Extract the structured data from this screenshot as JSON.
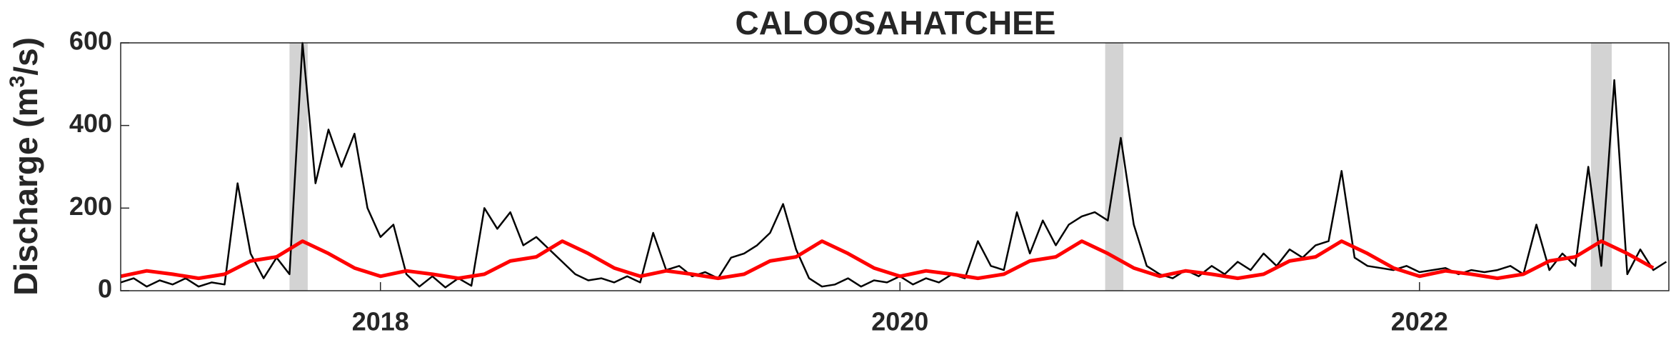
{
  "chart_data": {
    "type": "line",
    "title": "CALOOSAHATCHEE",
    "ylabel": [
      "Discharge (m",
      "3",
      "/s)"
    ],
    "xlim": [
      2017,
      2022.96
    ],
    "xticks": [
      2018,
      2020,
      2022
    ],
    "ylim": [
      0,
      600
    ],
    "yticks": [
      0,
      200,
      400,
      600
    ],
    "spans": [
      [
        2017.65,
        2017.72
      ],
      [
        2020.79,
        2020.86
      ],
      [
        2022.66,
        2022.74
      ]
    ],
    "span_color": "#d3d3d3",
    "series": [
      {
        "color": "#000000",
        "width": 2.5,
        "x": [
          2017.0,
          2017.05,
          2017.1,
          2017.15,
          2017.2,
          2017.25,
          2017.3,
          2017.35,
          2017.4,
          2017.45,
          2017.5,
          2017.55,
          2017.6,
          2017.65,
          2017.7,
          2017.75,
          2017.8,
          2017.85,
          2017.9,
          2017.95,
          2018.0,
          2018.05,
          2018.1,
          2018.15,
          2018.2,
          2018.25,
          2018.3,
          2018.35,
          2018.4,
          2018.45,
          2018.5,
          2018.55,
          2018.6,
          2018.65,
          2018.7,
          2018.75,
          2018.8,
          2018.85,
          2018.9,
          2018.95,
          2019.0,
          2019.05,
          2019.1,
          2019.15,
          2019.2,
          2019.25,
          2019.3,
          2019.35,
          2019.4,
          2019.45,
          2019.5,
          2019.55,
          2019.6,
          2019.65,
          2019.7,
          2019.75,
          2019.8,
          2019.85,
          2019.9,
          2019.95,
          2020.0,
          2020.05,
          2020.1,
          2020.15,
          2020.2,
          2020.25,
          2020.3,
          2020.35,
          2020.4,
          2020.45,
          2020.5,
          2020.55,
          2020.6,
          2020.65,
          2020.7,
          2020.75,
          2020.8,
          2020.85,
          2020.9,
          2020.95,
          2021.0,
          2021.05,
          2021.1,
          2021.15,
          2021.2,
          2021.25,
          2021.3,
          2021.35,
          2021.4,
          2021.45,
          2021.5,
          2021.55,
          2021.6,
          2021.65,
          2021.7,
          2021.75,
          2021.8,
          2021.85,
          2021.9,
          2021.95,
          2022.0,
          2022.05,
          2022.1,
          2022.15,
          2022.2,
          2022.25,
          2022.3,
          2022.35,
          2022.4,
          2022.45,
          2022.5,
          2022.55,
          2022.6,
          2022.65,
          2022.7,
          2022.75,
          2022.8,
          2022.85,
          2022.9,
          2022.95
        ],
        "values": [
          20,
          30,
          10,
          25,
          15,
          30,
          10,
          20,
          15,
          260,
          90,
          30,
          80,
          40,
          600,
          260,
          390,
          300,
          380,
          200,
          130,
          160,
          40,
          10,
          35,
          8,
          30,
          12,
          200,
          150,
          190,
          110,
          130,
          100,
          70,
          40,
          25,
          30,
          20,
          35,
          20,
          140,
          50,
          60,
          35,
          45,
          30,
          80,
          90,
          110,
          140,
          210,
          100,
          30,
          10,
          15,
          30,
          10,
          25,
          20,
          35,
          15,
          30,
          20,
          40,
          30,
          120,
          60,
          50,
          190,
          90,
          170,
          110,
          160,
          180,
          190,
          170,
          370,
          160,
          60,
          40,
          30,
          50,
          35,
          60,
          40,
          70,
          50,
          90,
          60,
          100,
          80,
          110,
          120,
          290,
          80,
          60,
          55,
          50,
          60,
          45,
          50,
          55,
          40,
          50,
          45,
          50,
          60,
          40,
          160,
          50,
          90,
          60,
          300,
          60,
          510,
          40,
          100,
          50,
          70
        ]
      },
      {
        "color": "#ff0000",
        "width": 5,
        "x": [
          2017.0,
          2017.1,
          2017.2,
          2017.3,
          2017.4,
          2017.5,
          2017.6,
          2017.7,
          2017.8,
          2017.9,
          2018.0,
          2018.1,
          2018.2,
          2018.3,
          2018.4,
          2018.5,
          2018.6,
          2018.7,
          2018.8,
          2018.9,
          2019.0,
          2019.1,
          2019.2,
          2019.3,
          2019.4,
          2019.5,
          2019.6,
          2019.7,
          2019.8,
          2019.9,
          2020.0,
          2020.1,
          2020.2,
          2020.3,
          2020.4,
          2020.5,
          2020.6,
          2020.7,
          2020.8,
          2020.9,
          2021.0,
          2021.1,
          2021.2,
          2021.3,
          2021.4,
          2021.5,
          2021.6,
          2021.7,
          2021.8,
          2021.9,
          2022.0,
          2022.1,
          2022.2,
          2022.3,
          2022.4,
          2022.5,
          2022.6,
          2022.7,
          2022.8,
          2022.9
        ],
        "values": [
          35,
          48,
          40,
          30,
          40,
          72,
          82,
          120,
          90,
          55,
          35,
          48,
          40,
          30,
          40,
          72,
          82,
          120,
          90,
          55,
          35,
          48,
          40,
          30,
          40,
          72,
          82,
          120,
          90,
          55,
          35,
          48,
          40,
          30,
          40,
          72,
          82,
          120,
          90,
          55,
          35,
          48,
          40,
          30,
          40,
          72,
          82,
          120,
          90,
          55,
          35,
          48,
          40,
          30,
          40,
          72,
          82,
          120,
          90,
          55
        ]
      }
    ]
  }
}
